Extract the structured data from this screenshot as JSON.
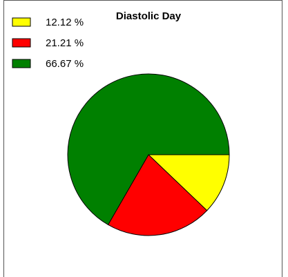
{
  "chart_data": {
    "type": "pie",
    "title": "Diastolic Day",
    "values": [
      12.12,
      21.21,
      66.67
    ],
    "value_labels": [
      "12.12 %",
      "21.21 %",
      "66.67 %"
    ],
    "colors": [
      "#ffff00",
      "#ff0000",
      "#008000"
    ]
  }
}
